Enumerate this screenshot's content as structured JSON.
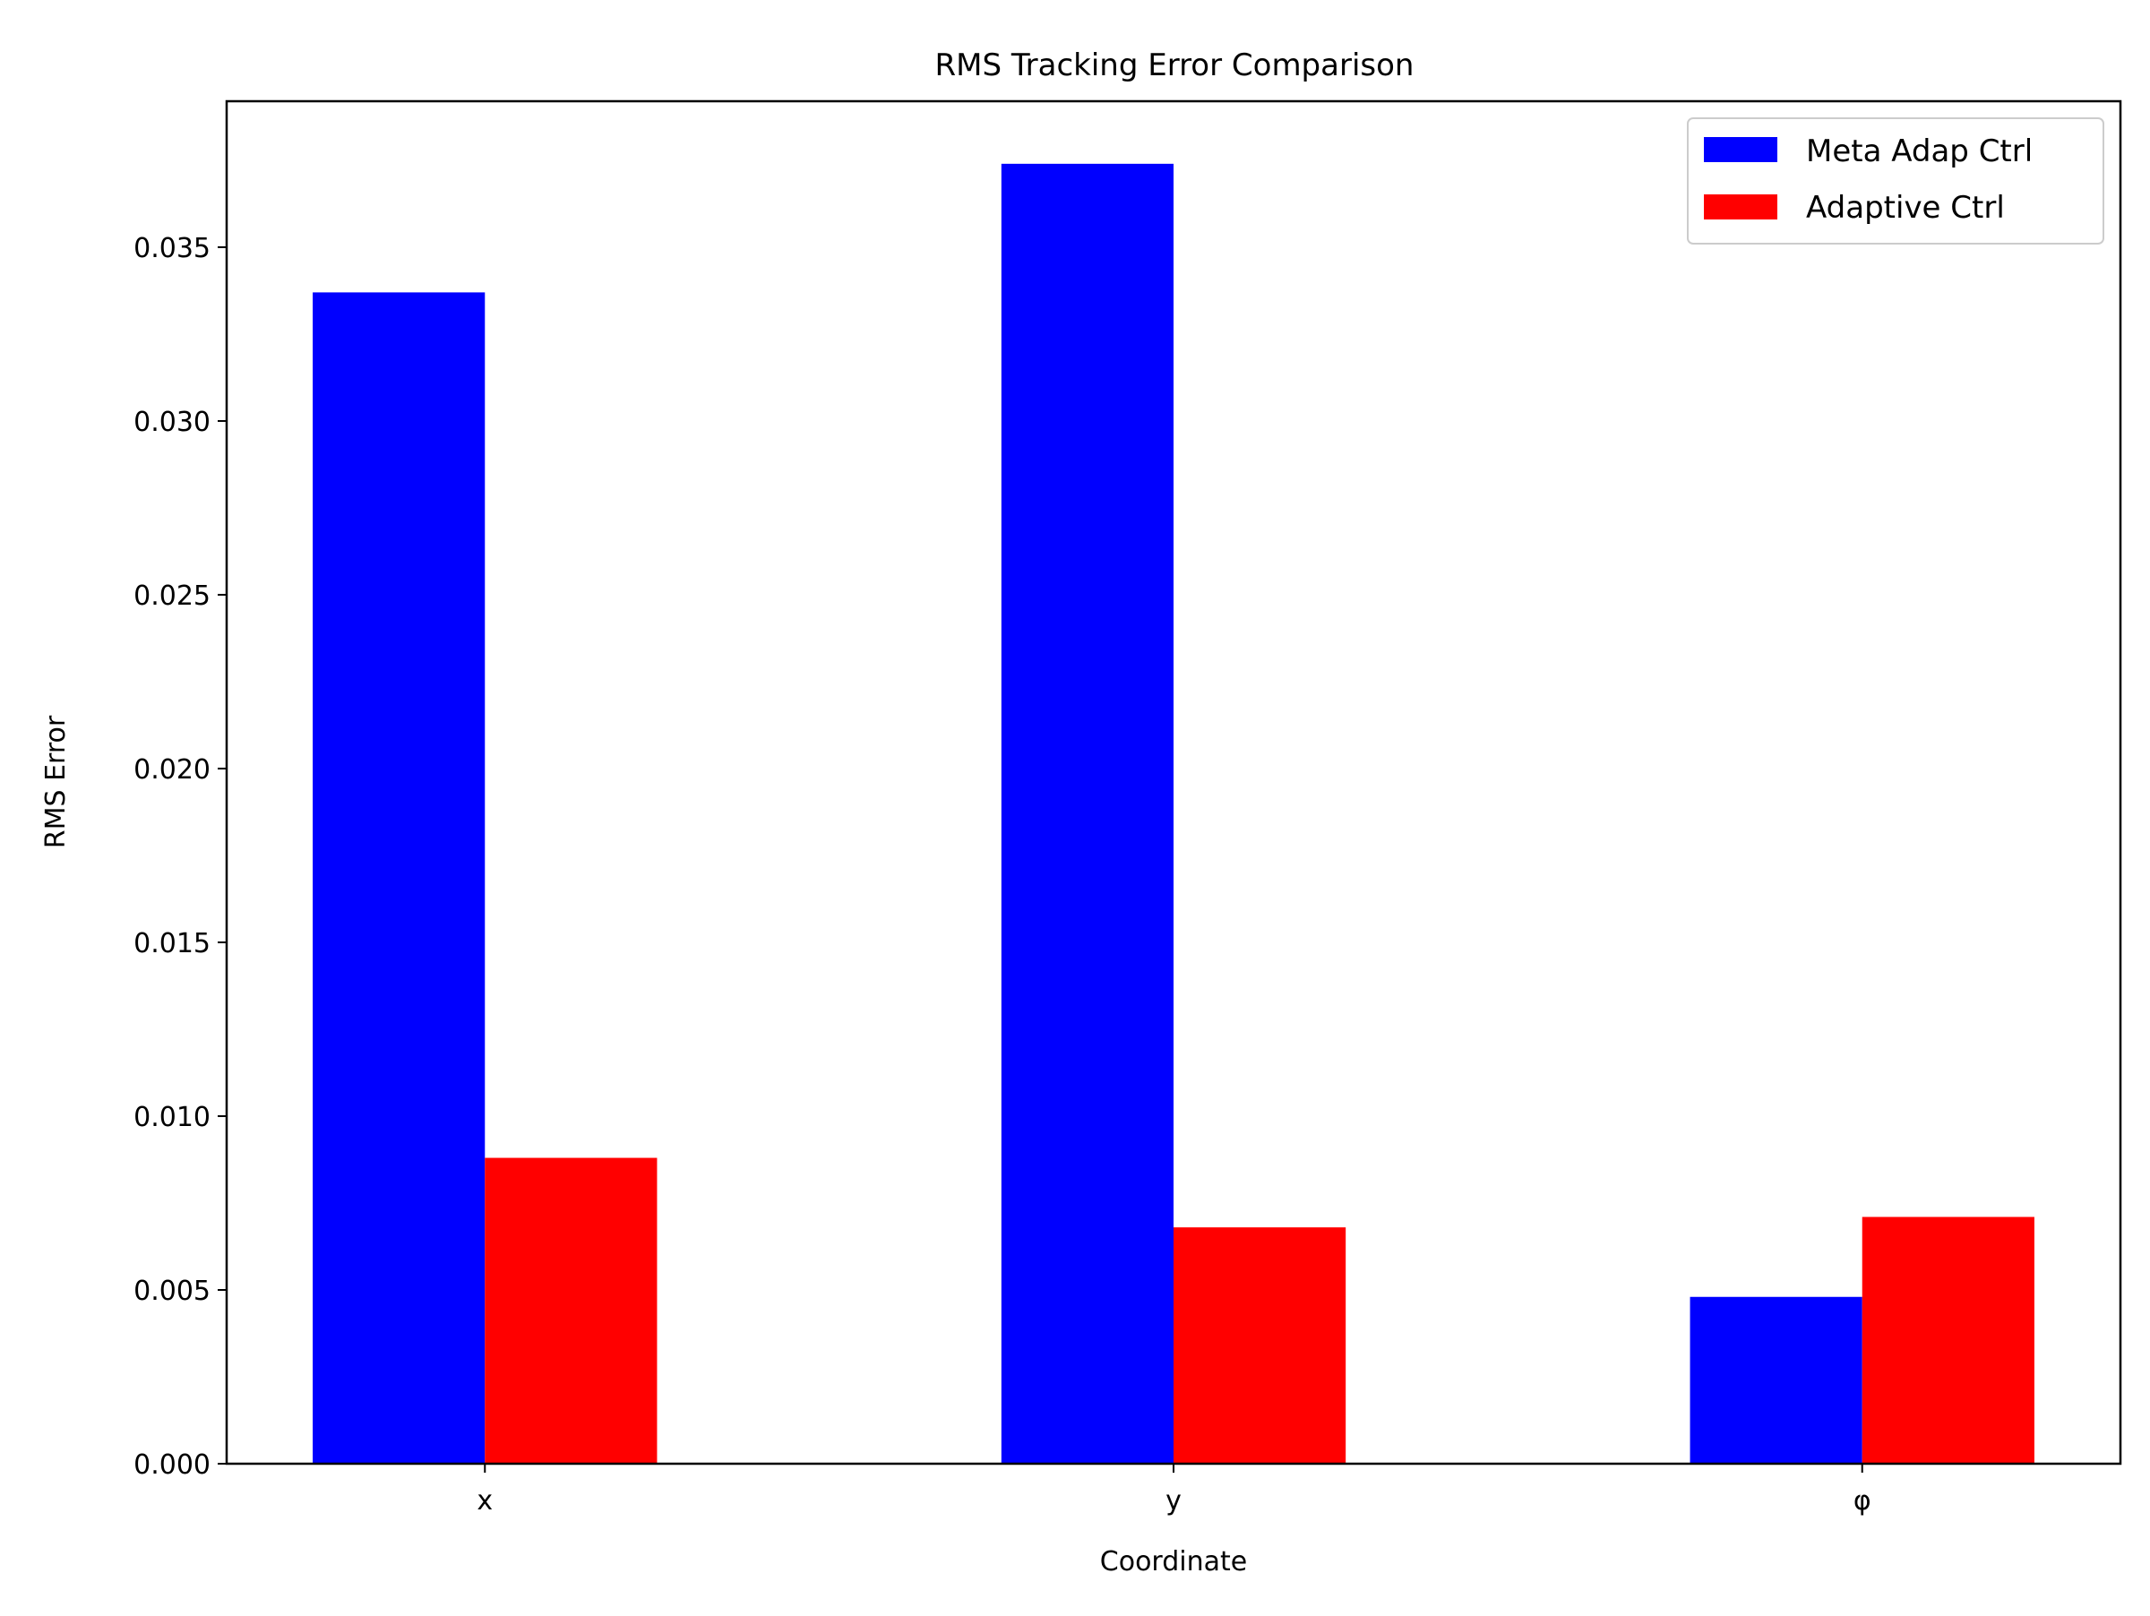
{
  "chart_data": {
    "type": "bar",
    "title": "RMS Tracking Error Comparison",
    "xlabel": "Coordinate",
    "ylabel": "RMS Error",
    "categories": [
      "x",
      "y",
      "φ"
    ],
    "series": [
      {
        "name": "Meta Adap Ctrl",
        "color": "#0000ff",
        "values": [
          0.0337,
          0.0374,
          0.0048
        ]
      },
      {
        "name": "Adaptive Ctrl",
        "color": "#ff0000",
        "values": [
          0.0088,
          0.0068,
          0.0071
        ]
      }
    ],
    "ylim": [
      0,
      0.0392
    ],
    "yticks": [
      "0.000",
      "0.005",
      "0.010",
      "0.015",
      "0.020",
      "0.025",
      "0.030",
      "0.035"
    ],
    "grid": false,
    "legend_position": "top-right"
  }
}
